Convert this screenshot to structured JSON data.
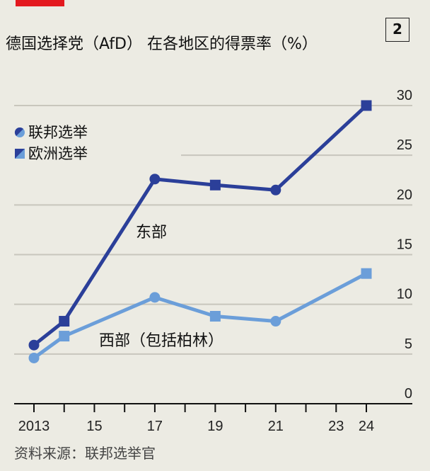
{
  "badge": "2",
  "source": "资料来源：联邦选举官",
  "colors": {
    "east": "#2b3f99",
    "west": "#6b9ed9",
    "accent": "#e3191f",
    "grid": "#c8c6bd"
  },
  "chart_data": {
    "type": "line",
    "title": "德国选择党（AfD） 在各地区的得票率（%）",
    "x_ticks": [
      2013,
      2014,
      2015,
      2016,
      2017,
      2018,
      2019,
      2020,
      2021,
      2022,
      2023,
      2024
    ],
    "x_tick_labels": [
      {
        "x": 2013,
        "label": "2013"
      },
      {
        "x": 2015,
        "label": "15"
      },
      {
        "x": 2017,
        "label": "17"
      },
      {
        "x": 2019,
        "label": "19"
      },
      {
        "x": 2021,
        "label": "21"
      },
      {
        "x": 2023,
        "label": "23"
      },
      {
        "x": 2024,
        "label": "24"
      }
    ],
    "y_ticks": [
      0,
      5,
      10,
      15,
      20,
      25,
      30
    ],
    "ylim": [
      0,
      30
    ],
    "xlim": [
      2013,
      2024
    ],
    "grid": true,
    "legend": {
      "placement": "top-left",
      "entries": [
        {
          "label": "联邦选举",
          "marker": "circle"
        },
        {
          "label": "欧洲选举",
          "marker": "square"
        }
      ]
    },
    "series": [
      {
        "name": "东部",
        "color": "#2b3f99",
        "points": [
          {
            "x": 2013,
            "y": 5.9,
            "marker": "circle"
          },
          {
            "x": 2014,
            "y": 8.3,
            "marker": "square"
          },
          {
            "x": 2017,
            "y": 22.6,
            "marker": "circle"
          },
          {
            "x": 2019,
            "y": 22.0,
            "marker": "square"
          },
          {
            "x": 2021,
            "y": 21.5,
            "marker": "circle"
          },
          {
            "x": 2024,
            "y": 30.0,
            "marker": "square"
          }
        ]
      },
      {
        "name": "西部（包括柏林）",
        "color": "#6b9ed9",
        "points": [
          {
            "x": 2013,
            "y": 4.6,
            "marker": "circle"
          },
          {
            "x": 2014,
            "y": 6.8,
            "marker": "square"
          },
          {
            "x": 2017,
            "y": 10.7,
            "marker": "circle"
          },
          {
            "x": 2019,
            "y": 8.8,
            "marker": "square"
          },
          {
            "x": 2021,
            "y": 8.3,
            "marker": "circle"
          },
          {
            "x": 2024,
            "y": 13.1,
            "marker": "square"
          }
        ]
      }
    ]
  }
}
